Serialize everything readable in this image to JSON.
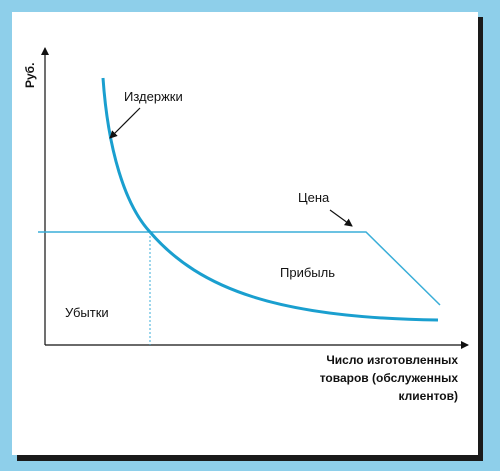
{
  "axes": {
    "y_label": "Руб.",
    "x_label": [
      "Число изготовленных",
      "товаров (обслуженных",
      "клиентов)"
    ]
  },
  "labels": {
    "costs": "Издержки",
    "price": "Цена",
    "profit": "Прибыль",
    "losses": "Убытки"
  }
}
